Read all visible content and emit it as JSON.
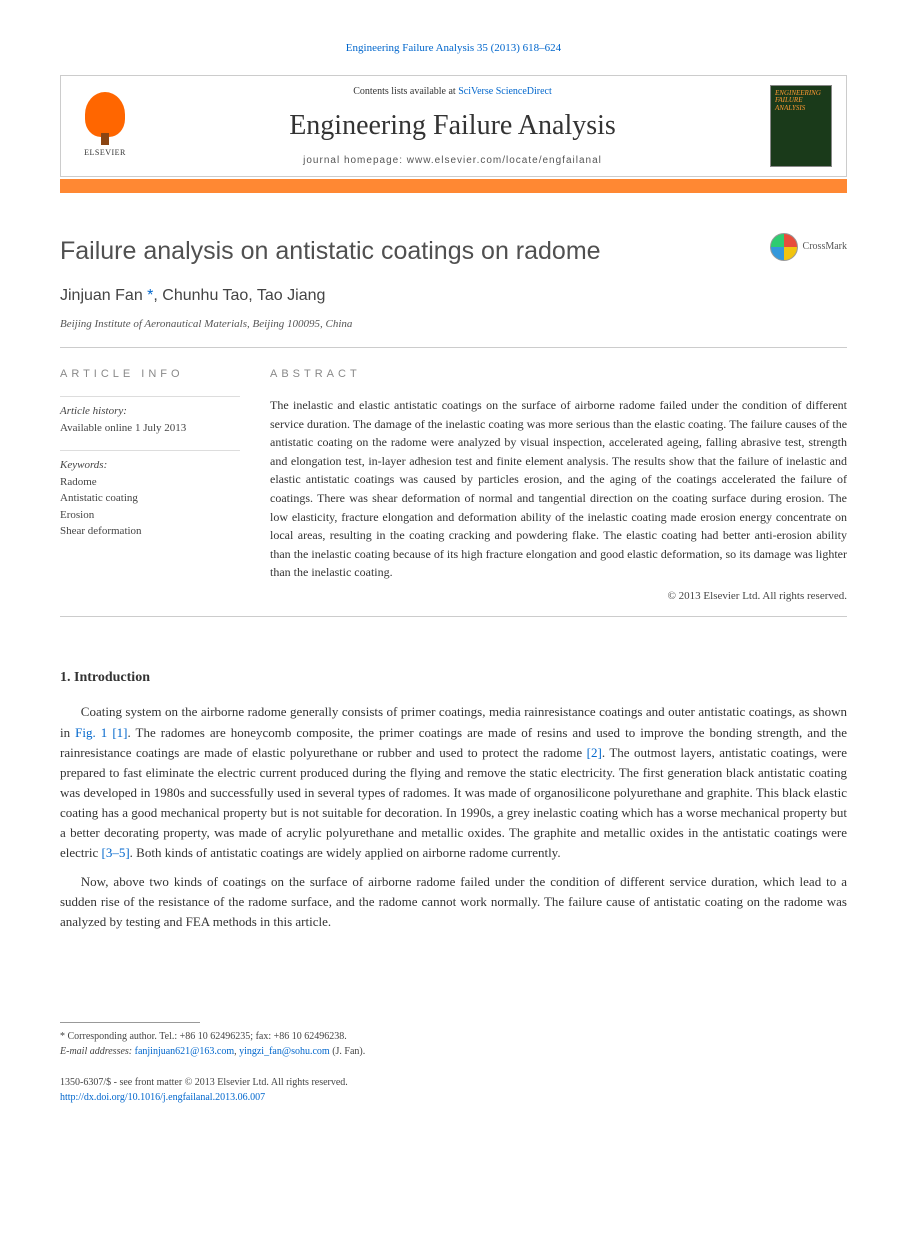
{
  "citation_line": "Engineering Failure Analysis 35 (2013) 618–624",
  "header": {
    "contents_prefix": "Contents lists available at ",
    "contents_link": "SciVerse ScienceDirect",
    "journal_name": "Engineering Failure Analysis",
    "homepage_prefix": "journal homepage: ",
    "homepage_url": "www.elsevier.com/locate/engfailanal",
    "elsevier_label": "ELSEVIER",
    "cover_title": "ENGINEERING FAILURE ANALYSIS"
  },
  "crossmark_label": "CrossMark",
  "article": {
    "title": "Failure analysis on antistatic coatings on radome",
    "authors_html_parts": {
      "a1": "Jinjuan Fan ",
      "corr": "*",
      "a_rest": ", Chunhu Tao, Tao Jiang"
    },
    "affiliation": "Beijing Institute of Aeronautical Materials, Beijing 100095, China"
  },
  "info": {
    "heading": "ARTICLE INFO",
    "history_label": "Article history:",
    "history_value": "Available online 1 July 2013",
    "keywords_label": "Keywords:",
    "keywords": [
      "Radome",
      "Antistatic coating",
      "Erosion",
      "Shear deformation"
    ]
  },
  "abstract": {
    "heading": "ABSTRACT",
    "text": "The inelastic and elastic antistatic coatings on the surface of airborne radome failed under the condition of different service duration. The damage of the inelastic coating was more serious than the elastic coating. The failure causes of the antistatic coating on the radome were analyzed by visual inspection, accelerated ageing, falling abrasive test, strength and elongation test, in-layer adhesion test and finite element analysis. The results show that the failure of inelastic and elastic antistatic coatings was caused by particles erosion, and the aging of the coatings accelerated the failure of coatings. There was shear deformation of normal and tangential direction on the coating surface during erosion. The low elasticity, fracture elongation and deformation ability of the inelastic coating made erosion energy concentrate on local areas, resulting in the coating cracking and powdering flake. The elastic coating had better anti-erosion ability than the inelastic coating because of its high fracture elongation and good elastic deformation, so its damage was lighter than the inelastic coating.",
    "copyright": "© 2013 Elsevier Ltd. All rights reserved."
  },
  "sections": {
    "intro_title": "1. Introduction",
    "intro_p1_a": "Coating system on the airborne radome generally consists of primer coatings, media rainresistance coatings and outer antistatic coatings, as shown in ",
    "intro_p1_fig": "Fig. 1",
    "intro_p1_ref1": " [1]",
    "intro_p1_b": ". The radomes are honeycomb composite, the primer coatings are made of resins and used to improve the bonding strength, and the rainresistance coatings are made of elastic polyurethane or rubber and used to protect the radome ",
    "intro_p1_ref2": "[2]",
    "intro_p1_c": ". The outmost layers, antistatic coatings, were prepared to fast eliminate the electric current produced during the flying and remove the static electricity. The first generation black antistatic coating was developed in 1980s and successfully used in several types of radomes. It was made of organosilicone polyurethane and graphite. This black elastic coating has a good mechanical property but is not suitable for decoration. In 1990s, a grey inelastic coating which has a worse mechanical property but a better decorating property, was made of acrylic polyurethane and metallic oxides. The graphite and metallic oxides in the antistatic coatings were electric ",
    "intro_p1_ref3": "[3–5]",
    "intro_p1_d": ". Both kinds of antistatic coatings are widely applied on airborne radome currently.",
    "intro_p2": "Now, above two kinds of coatings on the surface of airborne radome failed under the condition of different service duration, which lead to a sudden rise of the resistance of the radome surface, and the radome cannot work normally. The failure cause of antistatic coating on the radome was analyzed by testing and FEA methods in this article."
  },
  "footnotes": {
    "corr_line": "* Corresponding author. Tel.: +86 10 62496235; fax: +86 10 62496238.",
    "email_label": "E-mail addresses: ",
    "email1": "fanjinjuan621@163.com",
    "email_sep": ", ",
    "email2": "yingzi_fan@sohu.com",
    "email_tail": " (J. Fan)."
  },
  "bottom": {
    "line1": "1350-6307/$ - see front matter © 2013 Elsevier Ltd. All rights reserved.",
    "doi": "http://dx.doi.org/10.1016/j.engfailanal.2013.06.007"
  },
  "colors": {
    "link": "#0066cc",
    "orange_bar": "#ff8833",
    "title_gray": "#505050",
    "rule": "#cccccc"
  }
}
